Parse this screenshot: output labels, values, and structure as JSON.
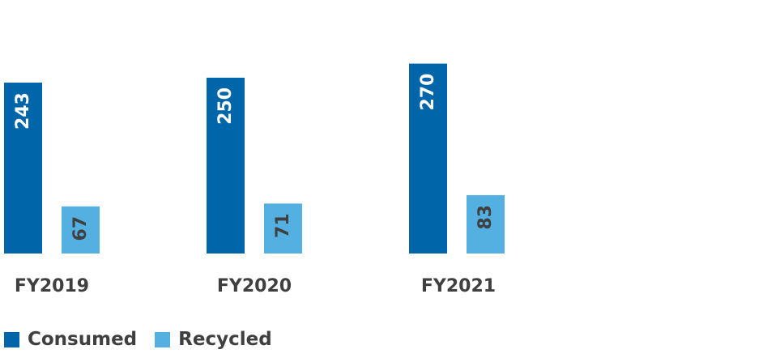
{
  "chart_data": {
    "type": "bar",
    "categories": [
      "FY2019",
      "FY2020",
      "FY2021"
    ],
    "series": [
      {
        "name": "Consumed",
        "values": [
          243,
          250,
          270
        ],
        "color": "#0065a9",
        "label_color": "#ffffff"
      },
      {
        "name": "Recycled",
        "values": [
          67,
          71,
          83
        ],
        "color": "#55b0e2",
        "label_color": "#3f3f3f"
      }
    ],
    "ylim": [
      0,
      300
    ],
    "grid": false,
    "legend_position": "bottom-left"
  }
}
